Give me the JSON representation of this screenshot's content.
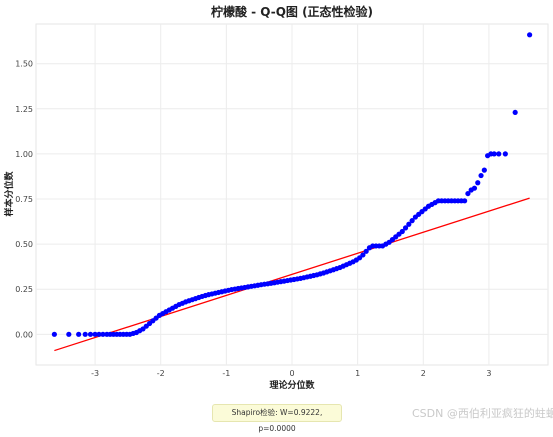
{
  "chart_data": {
    "type": "scatter",
    "title": "柠檬酸 - Q-Q图 (正态性检验)",
    "xlabel": "理论分位数",
    "ylabel": "样本分位数",
    "xlim": [
      -3.9,
      3.9
    ],
    "ylim": [
      -0.17,
      1.72
    ],
    "xticks": [
      -3,
      -2,
      -1,
      0,
      1,
      2,
      3
    ],
    "yticks": [
      0.0,
      0.25,
      0.5,
      0.75,
      1.0,
      1.25,
      1.5
    ],
    "ytick_labels": [
      "0.00",
      "0.25",
      "0.50",
      "0.75",
      "1.00",
      "1.25",
      "1.50"
    ],
    "grid": true,
    "series": [
      {
        "kind": "points",
        "color": "#0000ff",
        "points": [
          [
            -3.62,
            0.0
          ],
          [
            -3.4,
            0.0
          ],
          [
            -3.25,
            0.0
          ],
          [
            -3.15,
            0.0
          ],
          [
            -3.07,
            0.0
          ],
          [
            -3.0,
            0.0
          ],
          [
            -2.94,
            0.0
          ],
          [
            -2.88,
            0.0
          ],
          [
            -2.82,
            0.0
          ],
          [
            -2.77,
            0.0
          ],
          [
            -2.72,
            0.0
          ],
          [
            -2.67,
            0.0
          ],
          [
            -2.62,
            0.0
          ],
          [
            -2.57,
            0.0
          ],
          [
            -2.52,
            0.0
          ],
          [
            -2.47,
            0.0
          ],
          [
            -2.42,
            0.005
          ],
          [
            -2.37,
            0.01
          ],
          [
            -2.32,
            0.02
          ],
          [
            -2.27,
            0.03
          ],
          [
            -2.22,
            0.045
          ],
          [
            -2.17,
            0.06
          ],
          [
            -2.12,
            0.075
          ],
          [
            -2.07,
            0.09
          ],
          [
            -2.02,
            0.105
          ],
          [
            -1.97,
            0.115
          ],
          [
            -1.92,
            0.125
          ],
          [
            -1.87,
            0.135
          ],
          [
            -1.82,
            0.145
          ],
          [
            -1.77,
            0.155
          ],
          [
            -1.72,
            0.165
          ],
          [
            -1.67,
            0.172
          ],
          [
            -1.62,
            0.18
          ],
          [
            -1.57,
            0.186
          ],
          [
            -1.52,
            0.192
          ],
          [
            -1.47,
            0.198
          ],
          [
            -1.42,
            0.204
          ],
          [
            -1.37,
            0.21
          ],
          [
            -1.32,
            0.215
          ],
          [
            -1.27,
            0.22
          ],
          [
            -1.22,
            0.224
          ],
          [
            -1.17,
            0.228
          ],
          [
            -1.12,
            0.232
          ],
          [
            -1.07,
            0.236
          ],
          [
            -1.02,
            0.24
          ],
          [
            -0.97,
            0.244
          ],
          [
            -0.92,
            0.248
          ],
          [
            -0.87,
            0.251
          ],
          [
            -0.82,
            0.254
          ],
          [
            -0.77,
            0.257
          ],
          [
            -0.72,
            0.26
          ],
          [
            -0.67,
            0.263
          ],
          [
            -0.62,
            0.266
          ],
          [
            -0.57,
            0.269
          ],
          [
            -0.52,
            0.272
          ],
          [
            -0.47,
            0.275
          ],
          [
            -0.42,
            0.278
          ],
          [
            -0.37,
            0.28
          ],
          [
            -0.32,
            0.283
          ],
          [
            -0.27,
            0.286
          ],
          [
            -0.22,
            0.289
          ],
          [
            -0.17,
            0.292
          ],
          [
            -0.12,
            0.295
          ],
          [
            -0.07,
            0.298
          ],
          [
            -0.02,
            0.301
          ],
          [
            0.03,
            0.304
          ],
          [
            0.08,
            0.307
          ],
          [
            0.13,
            0.31
          ],
          [
            0.18,
            0.314
          ],
          [
            0.23,
            0.318
          ],
          [
            0.28,
            0.322
          ],
          [
            0.33,
            0.326
          ],
          [
            0.38,
            0.33
          ],
          [
            0.43,
            0.335
          ],
          [
            0.48,
            0.34
          ],
          [
            0.53,
            0.346
          ],
          [
            0.58,
            0.352
          ],
          [
            0.63,
            0.358
          ],
          [
            0.68,
            0.364
          ],
          [
            0.73,
            0.37
          ],
          [
            0.78,
            0.378
          ],
          [
            0.83,
            0.386
          ],
          [
            0.88,
            0.394
          ],
          [
            0.93,
            0.402
          ],
          [
            0.98,
            0.412
          ],
          [
            1.03,
            0.424
          ],
          [
            1.08,
            0.44
          ],
          [
            1.13,
            0.46
          ],
          [
            1.18,
            0.48
          ],
          [
            1.23,
            0.49
          ],
          [
            1.28,
            0.49
          ],
          [
            1.33,
            0.49
          ],
          [
            1.38,
            0.49
          ],
          [
            1.43,
            0.5
          ],
          [
            1.48,
            0.51
          ],
          [
            1.53,
            0.525
          ],
          [
            1.58,
            0.54
          ],
          [
            1.63,
            0.555
          ],
          [
            1.68,
            0.57
          ],
          [
            1.73,
            0.59
          ],
          [
            1.78,
            0.61
          ],
          [
            1.83,
            0.63
          ],
          [
            1.88,
            0.65
          ],
          [
            1.93,
            0.665
          ],
          [
            1.98,
            0.68
          ],
          [
            2.03,
            0.695
          ],
          [
            2.08,
            0.71
          ],
          [
            2.13,
            0.72
          ],
          [
            2.18,
            0.73
          ],
          [
            2.23,
            0.74
          ],
          [
            2.28,
            0.74
          ],
          [
            2.33,
            0.74
          ],
          [
            2.38,
            0.74
          ],
          [
            2.43,
            0.74
          ],
          [
            2.48,
            0.74
          ],
          [
            2.53,
            0.74
          ],
          [
            2.58,
            0.74
          ],
          [
            2.63,
            0.74
          ],
          [
            2.68,
            0.78
          ],
          [
            2.73,
            0.8
          ],
          [
            2.78,
            0.81
          ],
          [
            2.83,
            0.84
          ],
          [
            2.88,
            0.88
          ],
          [
            2.93,
            0.91
          ],
          [
            2.98,
            0.99
          ],
          [
            3.03,
            1.0
          ],
          [
            3.08,
            1.0
          ],
          [
            3.15,
            1.0
          ],
          [
            3.25,
            1.0
          ],
          [
            3.4,
            1.23
          ],
          [
            3.62,
            1.66
          ]
        ]
      },
      {
        "kind": "line",
        "color": "#ff0000",
        "points": [
          [
            -3.62,
            -0.09
          ],
          [
            3.62,
            0.755
          ]
        ]
      }
    ]
  },
  "note": "Shapiro检验: W=0.9222, p=0.0000",
  "watermark": "CSDN @西伯利亚疯狂的蛀蛔"
}
